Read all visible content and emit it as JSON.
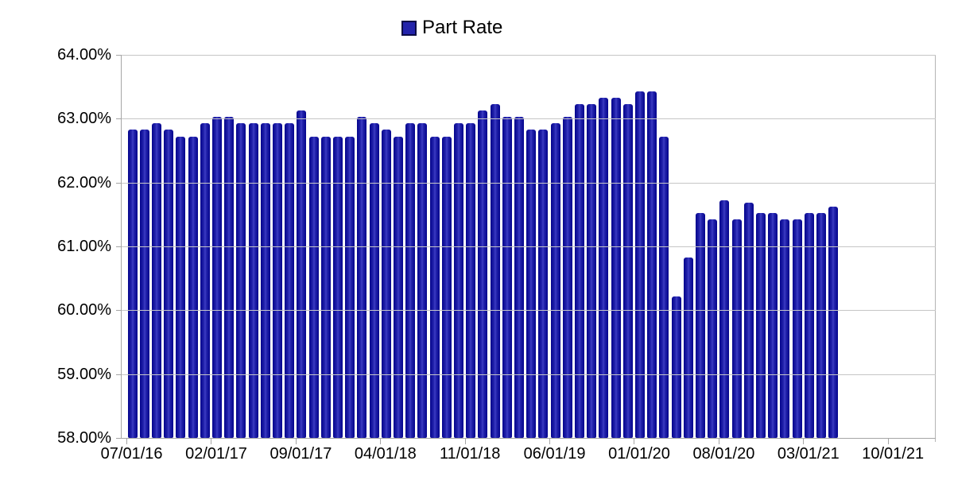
{
  "chart_data": {
    "type": "bar",
    "title": "",
    "legend_label": "Part Rate",
    "series_name": "Part Rate",
    "legend_position": "top-center",
    "grid": true,
    "unit": "%",
    "ylim": [
      58,
      64
    ],
    "ytick_labels": [
      "64.00%",
      "63.00%",
      "62.00%",
      "61.00%",
      "60.00%",
      "59.00%",
      "58.00%"
    ],
    "xtick_labels": [
      "07/01/16",
      "02/01/17",
      "09/01/17",
      "04/01/18",
      "11/01/18",
      "06/01/19",
      "01/01/20",
      "08/01/20",
      "03/01/21",
      "10/01/21"
    ],
    "x_label_interval": 7,
    "categories": [
      "07/01/16",
      "08/01/16",
      "09/01/16",
      "10/01/16",
      "11/01/16",
      "12/01/16",
      "01/01/17",
      "02/01/17",
      "03/01/17",
      "04/01/17",
      "05/01/17",
      "06/01/17",
      "07/01/17",
      "08/01/17",
      "09/01/17",
      "10/01/17",
      "11/01/17",
      "12/01/17",
      "01/01/18",
      "02/01/18",
      "03/01/18",
      "04/01/18",
      "05/01/18",
      "06/01/18",
      "07/01/18",
      "08/01/18",
      "09/01/18",
      "10/01/18",
      "11/01/18",
      "12/01/18",
      "01/01/19",
      "02/01/19",
      "03/01/19",
      "04/01/19",
      "05/01/19",
      "06/01/19",
      "07/01/19",
      "08/01/19",
      "09/01/19",
      "10/01/19",
      "11/01/19",
      "12/01/19",
      "01/01/20",
      "02/01/20",
      "03/01/20",
      "04/01/20",
      "05/01/20",
      "06/01/20",
      "07/01/20",
      "08/01/20",
      "09/01/20",
      "10/01/20",
      "11/01/20",
      "12/01/20",
      "01/01/21",
      "02/01/21",
      "03/01/21",
      "04/01/21",
      "05/01/21"
    ],
    "values": [
      62.83,
      62.83,
      62.93,
      62.83,
      62.72,
      62.72,
      62.93,
      63.03,
      63.03,
      62.93,
      62.93,
      62.93,
      62.93,
      62.93,
      63.13,
      62.72,
      62.72,
      62.72,
      62.72,
      63.03,
      62.93,
      62.83,
      62.72,
      62.93,
      62.93,
      62.72,
      62.72,
      62.93,
      62.93,
      63.13,
      63.23,
      63.03,
      63.03,
      62.83,
      62.83,
      62.93,
      63.03,
      63.23,
      63.23,
      63.33,
      63.33,
      63.23,
      63.43,
      63.43,
      62.72,
      60.22,
      60.83,
      61.52,
      61.42,
      61.72,
      61.42,
      61.68,
      61.52,
      61.52,
      61.42,
      61.42,
      61.52,
      61.52,
      61.62
    ],
    "colors": {
      "bar": "#16169e",
      "bar_edge": "#04048c",
      "bar_highlight": "#3d3dc4",
      "legend_marker_fill": "#2323ab",
      "legend_marker_border": "#0a0a46",
      "gridline": "#c6c6c6",
      "axis": "#a5a5a5",
      "text": "#000000",
      "background": "#ffffff"
    }
  }
}
